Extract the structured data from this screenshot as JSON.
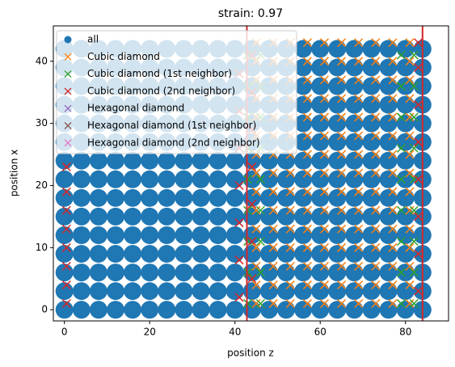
{
  "chart_data": {
    "type": "scatter",
    "title": "strain: 0.97",
    "x_label": "position z",
    "y_label": "position x",
    "xlim": [
      -2.6,
      90.1
    ],
    "ylim": [
      -1.8,
      45.7
    ],
    "xticks": [
      0,
      20,
      40,
      60,
      80
    ],
    "yticks": [
      0,
      10,
      20,
      30,
      40
    ],
    "vlines": [
      42.8,
      84.0
    ],
    "vline_color": "#d62728",
    "legend": "upper left",
    "series": [
      {
        "name": "all",
        "marker": "o",
        "color": "#1f77b4",
        "x": [
          0,
          4,
          8,
          12,
          16,
          20,
          24,
          28,
          32,
          36,
          40,
          44,
          48,
          52,
          56,
          60,
          64,
          68,
          72,
          76,
          80,
          84,
          0,
          4,
          8,
          12,
          16,
          20,
          24,
          28,
          32,
          36,
          40,
          44,
          48,
          52,
          56,
          60,
          64,
          68,
          72,
          76,
          80,
          84,
          0,
          4,
          8,
          12,
          16,
          20,
          24,
          28,
          32,
          36,
          40,
          44,
          48,
          52,
          56,
          60,
          64,
          68,
          72,
          76,
          80,
          84,
          0,
          4,
          8,
          12,
          16,
          20,
          24,
          28,
          32,
          36,
          40,
          44,
          48,
          52,
          56,
          60,
          64,
          68,
          72,
          76,
          80,
          84,
          0,
          4,
          8,
          12,
          16,
          20,
          24,
          28,
          32,
          36,
          40,
          44,
          48,
          52,
          56,
          60,
          64,
          68,
          72,
          76,
          80,
          84,
          0,
          4,
          8,
          12,
          16,
          20,
          24,
          28,
          32,
          36,
          40,
          44,
          48,
          52,
          56,
          60,
          64,
          68,
          72,
          76,
          80,
          84,
          0,
          4,
          8,
          12,
          16,
          20,
          24,
          28,
          32,
          36,
          40,
          44,
          48,
          52,
          56,
          60,
          64,
          68,
          72,
          76,
          80,
          84,
          0,
          4,
          8,
          12,
          16,
          20,
          24,
          28,
          32,
          36,
          40,
          44,
          48,
          52,
          56,
          60,
          64,
          68,
          72,
          76,
          80,
          84,
          0,
          4,
          8,
          12,
          16,
          20,
          24,
          28,
          32,
          36,
          40,
          44,
          48,
          52,
          56,
          60,
          64,
          68,
          72,
          76,
          80,
          84,
          0,
          4,
          8,
          12,
          16,
          20,
          24,
          28,
          32,
          36,
          40,
          44,
          48,
          52,
          56,
          60,
          64,
          68,
          72,
          76,
          80,
          84,
          0,
          4,
          8,
          12,
          16,
          20,
          24,
          28,
          32,
          36,
          40,
          44,
          48,
          52,
          56,
          60,
          64,
          68,
          72,
          76,
          80,
          84,
          0,
          4,
          8,
          12,
          16,
          20,
          24,
          28,
          32,
          36,
          40,
          44,
          48,
          52,
          56,
          60,
          64,
          68,
          72,
          76,
          80,
          84,
          0,
          4,
          8,
          12,
          16,
          20,
          24,
          28,
          32,
          36,
          40,
          44,
          48,
          52,
          56,
          60,
          64,
          68,
          72,
          76,
          80,
          84,
          0,
          4,
          8,
          12,
          16,
          20,
          24,
          28,
          32,
          36,
          40,
          44,
          48,
          52,
          56,
          60,
          64,
          68,
          72,
          76,
          80,
          84,
          0,
          4,
          8,
          12,
          16,
          20,
          24,
          28,
          32,
          36,
          40,
          44,
          48,
          52,
          56,
          60,
          64,
          68,
          72,
          76,
          80,
          84
        ],
        "y": [
          0,
          0,
          0,
          0,
          0,
          0,
          0,
          0,
          0,
          0,
          0,
          0,
          0,
          0,
          0,
          0,
          0,
          0,
          0,
          0,
          0,
          0,
          3,
          3,
          3,
          3,
          3,
          3,
          3,
          3,
          3,
          3,
          3,
          3,
          3,
          3,
          3,
          3,
          3,
          3,
          3,
          3,
          3,
          3,
          6,
          6,
          6,
          6,
          6,
          6,
          6,
          6,
          6,
          6,
          6,
          6,
          6,
          6,
          6,
          6,
          6,
          6,
          6,
          6,
          6,
          6,
          9,
          9,
          9,
          9,
          9,
          9,
          9,
          9,
          9,
          9,
          9,
          9,
          9,
          9,
          9,
          9,
          9,
          9,
          9,
          9,
          9,
          9,
          12,
          12,
          12,
          12,
          12,
          12,
          12,
          12,
          12,
          12,
          12,
          12,
          12,
          12,
          12,
          12,
          12,
          12,
          12,
          12,
          12,
          12,
          15,
          15,
          15,
          15,
          15,
          15,
          15,
          15,
          15,
          15,
          15,
          15,
          15,
          15,
          15,
          15,
          15,
          15,
          15,
          15,
          15,
          15,
          18,
          18,
          18,
          18,
          18,
          18,
          18,
          18,
          18,
          18,
          18,
          18,
          18,
          18,
          18,
          18,
          18,
          18,
          18,
          18,
          18,
          18,
          21,
          21,
          21,
          21,
          21,
          21,
          21,
          21,
          21,
          21,
          21,
          21,
          21,
          21,
          21,
          21,
          21,
          21,
          21,
          21,
          21,
          21,
          24,
          24,
          24,
          24,
          24,
          24,
          24,
          24,
          24,
          24,
          24,
          24,
          24,
          24,
          24,
          24,
          24,
          24,
          24,
          24,
          24,
          24,
          27,
          27,
          27,
          27,
          27,
          27,
          27,
          27,
          27,
          27,
          27,
          27,
          27,
          27,
          27,
          27,
          27,
          27,
          27,
          27,
          27,
          27,
          30,
          30,
          30,
          30,
          30,
          30,
          30,
          30,
          30,
          30,
          30,
          30,
          30,
          30,
          30,
          30,
          30,
          30,
          30,
          30,
          30,
          30,
          33,
          33,
          33,
          33,
          33,
          33,
          33,
          33,
          33,
          33,
          33,
          33,
          33,
          33,
          33,
          33,
          33,
          33,
          33,
          33,
          33,
          33,
          36,
          36,
          36,
          36,
          36,
          36,
          36,
          36,
          36,
          36,
          36,
          36,
          36,
          36,
          36,
          36,
          36,
          36,
          36,
          36,
          36,
          36,
          39,
          39,
          39,
          39,
          39,
          39,
          39,
          39,
          39,
          39,
          39,
          39,
          39,
          39,
          39,
          39,
          39,
          39,
          39,
          39,
          39,
          39,
          42,
          42,
          42,
          42,
          42,
          42,
          42,
          42,
          42,
          42,
          42,
          42,
          42,
          42,
          42,
          42,
          42,
          42,
          42,
          42,
          42,
          42
        ]
      },
      {
        "name": "Cubic diamond",
        "marker": "x",
        "color": "#ff7f0e",
        "x": [
          45,
          49,
          53,
          57,
          61,
          65,
          69,
          73,
          77,
          81,
          45,
          49,
          53,
          57,
          61,
          65,
          69,
          73,
          77,
          81,
          45,
          49,
          53,
          57,
          61,
          65,
          69,
          73,
          77,
          81,
          45,
          49,
          53,
          57,
          61,
          65,
          69,
          73,
          77,
          81,
          45,
          49,
          53,
          57,
          61,
          65,
          69,
          73,
          77,
          81,
          45,
          49,
          53,
          57,
          61,
          65,
          69,
          73,
          77,
          81,
          45,
          49,
          53,
          57,
          61,
          65,
          69,
          73,
          77,
          81,
          45,
          49,
          53,
          57,
          61,
          65,
          69,
          73,
          77,
          81,
          45,
          49,
          53,
          57,
          61,
          65,
          69,
          73,
          77,
          81,
          45,
          49,
          53,
          57,
          61,
          65,
          69,
          73,
          77,
          81,
          45,
          49,
          53,
          57,
          61,
          65,
          69,
          73,
          77,
          81,
          45,
          49,
          53,
          57,
          61,
          65,
          69,
          73,
          77,
          81,
          45,
          49,
          53,
          57,
          61,
          65,
          69,
          73,
          77,
          81,
          45,
          49,
          53,
          57,
          61,
          65,
          69,
          73,
          77,
          81,
          45,
          49,
          53,
          57,
          61,
          65,
          69,
          73,
          77,
          81
        ],
        "y": [
          1,
          1,
          1,
          1,
          1,
          1,
          1,
          1,
          1,
          1,
          4,
          4,
          4,
          4,
          4,
          4,
          4,
          4,
          4,
          4,
          7,
          7,
          7,
          7,
          7,
          7,
          7,
          7,
          7,
          7,
          10,
          10,
          10,
          10,
          10,
          10,
          10,
          10,
          10,
          10,
          13,
          13,
          13,
          13,
          13,
          13,
          13,
          13,
          13,
          13,
          16,
          16,
          16,
          16,
          16,
          16,
          16,
          16,
          16,
          16,
          19,
          19,
          19,
          19,
          19,
          19,
          19,
          19,
          19,
          19,
          22,
          22,
          22,
          22,
          22,
          22,
          22,
          22,
          22,
          22,
          25,
          25,
          25,
          25,
          25,
          25,
          25,
          25,
          25,
          25,
          28,
          28,
          28,
          28,
          28,
          28,
          28,
          28,
          28,
          28,
          31,
          31,
          31,
          31,
          31,
          31,
          31,
          31,
          31,
          31,
          34,
          34,
          34,
          34,
          34,
          34,
          34,
          34,
          34,
          34,
          37,
          37,
          37,
          37,
          37,
          37,
          37,
          37,
          37,
          37,
          40,
          40,
          40,
          40,
          40,
          40,
          40,
          40,
          40,
          40,
          43,
          43,
          43,
          43,
          43,
          43,
          43,
          43,
          43,
          43
        ]
      },
      {
        "name": "Cubic diamond (1st neighbor)",
        "marker": "x",
        "color": "#2ca02c",
        "x": [
          43,
          46,
          79,
          82,
          43,
          46,
          79,
          82,
          43,
          46,
          79,
          82,
          43,
          46,
          79,
          82,
          43,
          46,
          79,
          82,
          43,
          46,
          79,
          82,
          43,
          46,
          79,
          82,
          43,
          46,
          79,
          82,
          43,
          46,
          79,
          82
        ],
        "y": [
          1,
          1,
          1,
          1,
          6,
          6,
          6,
          6,
          11,
          11,
          11,
          11,
          16,
          16,
          16,
          16,
          21,
          21,
          21,
          21,
          26,
          26,
          26,
          26,
          31,
          31,
          31,
          31,
          36,
          36,
          36,
          36,
          41,
          41,
          41,
          41
        ]
      },
      {
        "name": "Cubic diamond (2nd neighbor)",
        "marker": "x",
        "color": "#d62728",
        "x": [
          0.5,
          0.5,
          0.5,
          0.5,
          0.5,
          0.5,
          0.5,
          0.5,
          41,
          41,
          41,
          41,
          41,
          41,
          41,
          44,
          44,
          44,
          44,
          44,
          44,
          44,
          83,
          83,
          83,
          83,
          83,
          83,
          83,
          83
        ],
        "y": [
          1,
          4,
          7,
          10,
          13,
          16,
          19,
          23,
          2,
          8,
          14,
          20,
          26,
          32,
          38,
          5,
          11,
          17,
          23,
          29,
          35,
          41,
          3,
          9,
          15,
          21,
          27,
          33,
          39,
          43
        ]
      },
      {
        "name": "Hexagonal diamond",
        "marker": "x",
        "color": "#9467bd",
        "x": [],
        "y": []
      },
      {
        "name": "Hexagonal diamond (1st neighbor)",
        "marker": "x",
        "color": "#8c564b",
        "x": [],
        "y": []
      },
      {
        "name": "Hexagonal diamond (2nd neighbor)",
        "marker": "x",
        "color": "#e377c2",
        "x": [],
        "y": []
      }
    ]
  }
}
